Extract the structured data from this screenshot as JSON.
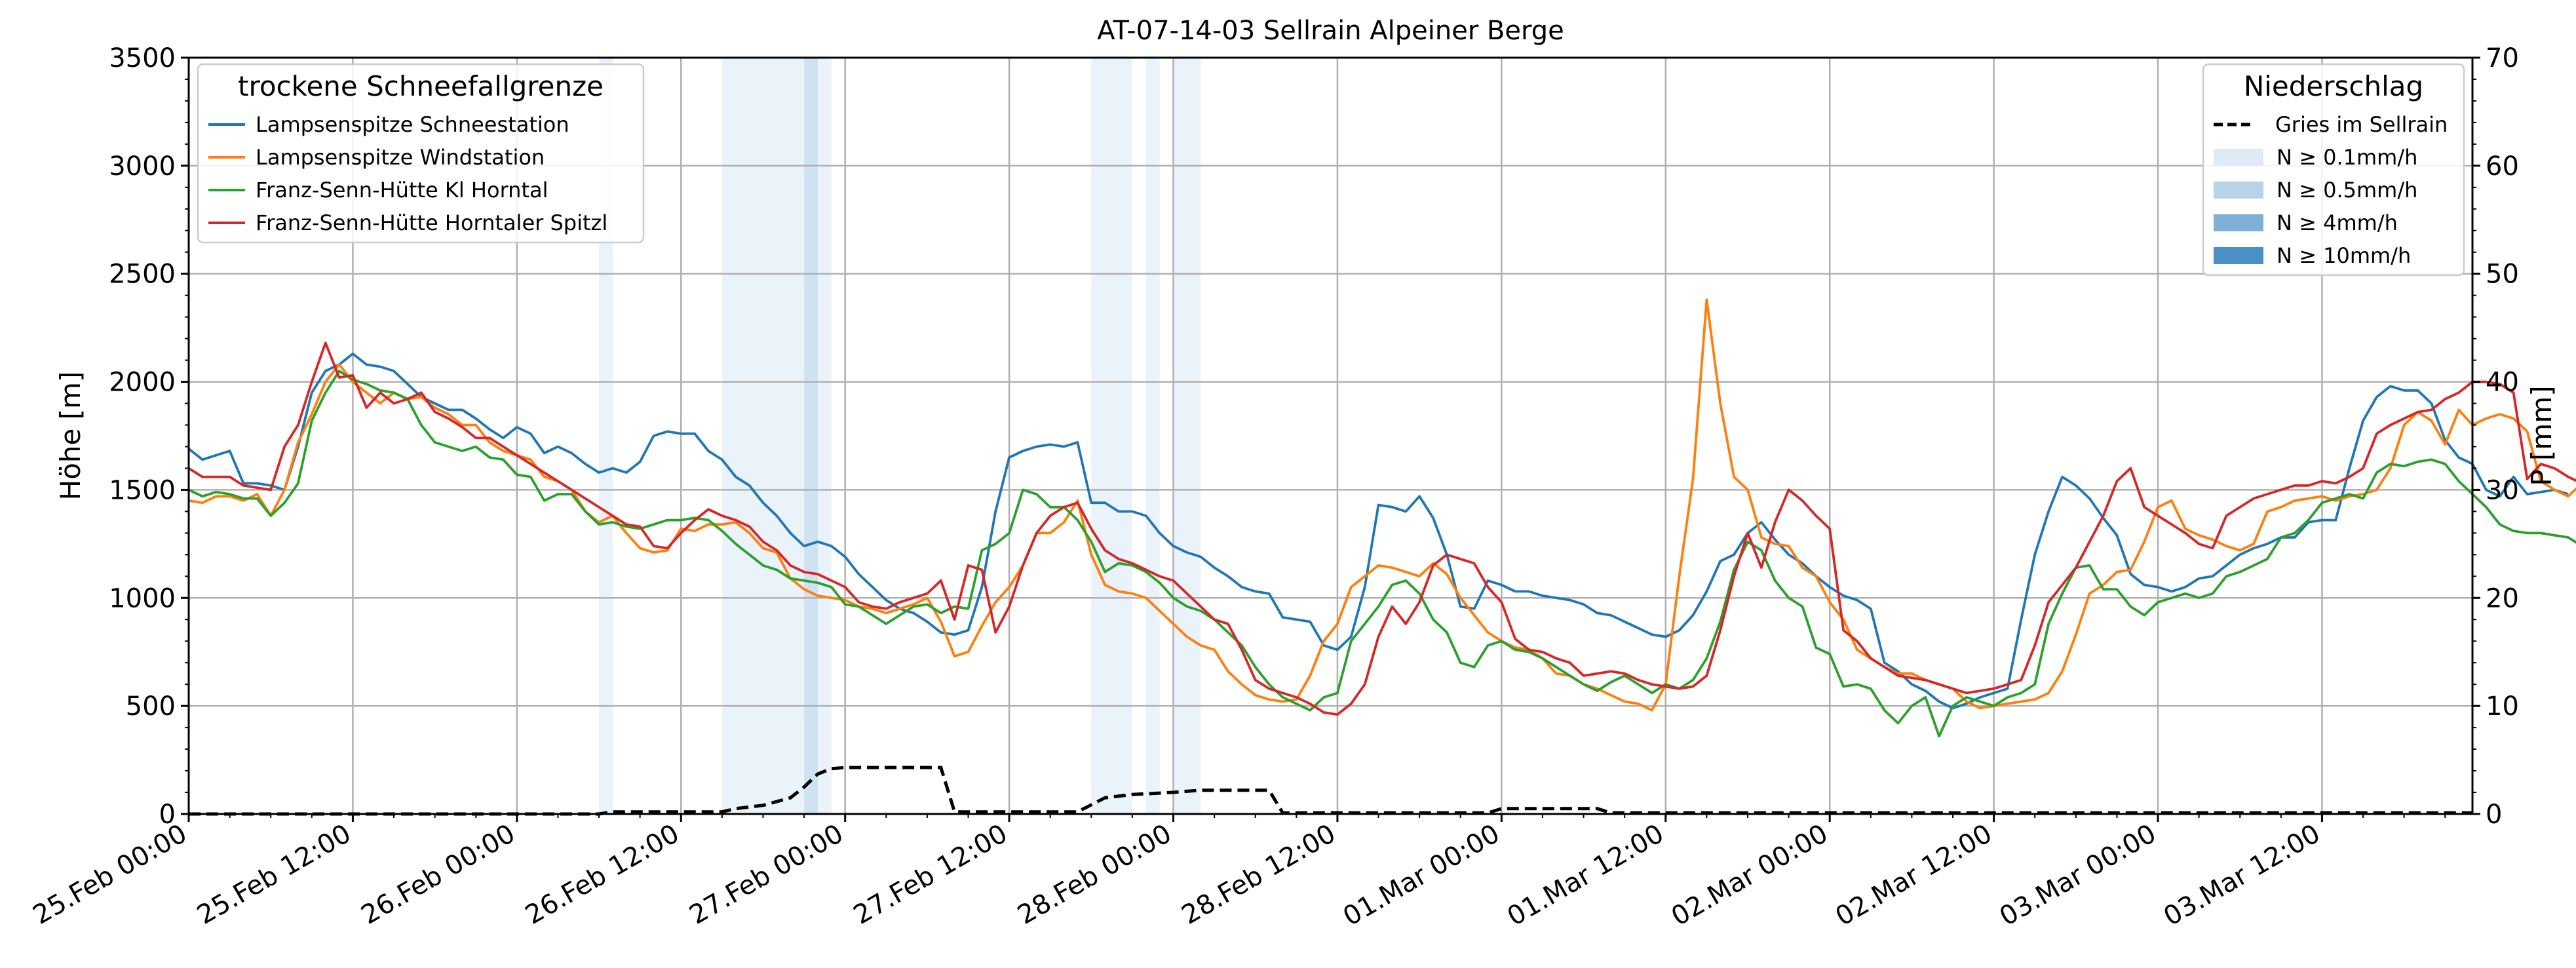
{
  "chart_data": {
    "type": "line",
    "title": "AT-07-14-03 Sellrain Alpeiner Berge",
    "ylabel_left": "Höhe [m]",
    "ylabel_right": "P [mm]",
    "ylim_left": [
      0,
      3500
    ],
    "ylim_right": [
      0,
      70
    ],
    "yticks_left": [
      "0",
      "500",
      "1000",
      "1500",
      "2000",
      "2500",
      "3000",
      "3500"
    ],
    "yticks_right": [
      "0",
      "10",
      "20",
      "30",
      "40",
      "50",
      "60",
      "70"
    ],
    "x_range_hours": [
      0,
      167
    ],
    "x_ticks": [
      "25.Feb 00:00",
      "25.Feb 12:00",
      "26.Feb 00:00",
      "26.Feb 12:00",
      "27.Feb 00:00",
      "27.Feb 12:00",
      "28.Feb 00:00",
      "28.Feb 12:00",
      "01.Mar 00:00",
      "01.Mar 12:00",
      "02.Mar 00:00",
      "02.Mar 12:00",
      "03.Mar 00:00",
      "03.Mar 12:00"
    ],
    "grid": true,
    "legend_left": {
      "title": "trockene Schneefallgrenze",
      "position": "top-left"
    },
    "legend_right": {
      "title": "Niederschlag",
      "position": "top-right",
      "entries": [
        {
          "label": "Gries im Sellrain",
          "style": "dashed",
          "color": "#000000"
        },
        {
          "label": "N ≥ 0.1mm/h",
          "color": "#deebf7"
        },
        {
          "label": "N ≥ 0.5mm/h",
          "color": "#b6d3ea"
        },
        {
          "label": "N ≥ 4mm/h",
          "color": "#7fb1d8"
        },
        {
          "label": "N ≥ 10mm/h",
          "color": "#4a90c6"
        }
      ]
    },
    "precip_bands": [
      {
        "x0": 30,
        "x1": 31,
        "level": "N ≥ 0.1mm/h"
      },
      {
        "x0": 39,
        "x1": 45,
        "level": "N ≥ 0.1mm/h"
      },
      {
        "x0": 45,
        "x1": 46,
        "level": "N ≥ 0.5mm/h"
      },
      {
        "x0": 46,
        "x1": 47,
        "level": "N ≥ 0.1mm/h"
      },
      {
        "x0": 66,
        "x1": 69,
        "level": "N ≥ 0.1mm/h"
      },
      {
        "x0": 70,
        "x1": 71,
        "level": "N ≥ 0.1mm/h"
      },
      {
        "x0": 72,
        "x1": 74,
        "level": "N ≥ 0.1mm/h"
      }
    ],
    "precip_cumulative": {
      "name": "Gries im Sellrain",
      "color": "#000000",
      "points": [
        [
          0,
          0
        ],
        [
          30,
          0
        ],
        [
          31,
          0.2
        ],
        [
          39,
          0.2
        ],
        [
          40,
          0.5
        ],
        [
          42,
          0.8
        ],
        [
          44,
          1.5
        ],
        [
          45,
          2.5
        ],
        [
          46,
          3.7
        ],
        [
          47,
          4.2
        ],
        [
          48,
          4.3
        ],
        [
          55,
          4.3
        ],
        [
          56,
          0.2
        ],
        [
          65,
          0.2
        ],
        [
          67,
          1.5
        ],
        [
          69,
          1.8
        ],
        [
          72,
          2
        ],
        [
          74,
          2.2
        ],
        [
          79,
          2.2
        ],
        [
          80,
          0.1
        ],
        [
          95,
          0.1
        ],
        [
          96,
          0.5
        ],
        [
          103,
          0.5
        ],
        [
          104,
          0.1
        ],
        [
          167,
          0.1
        ]
      ]
    },
    "series": [
      {
        "name": "Lampsenspitze Schneestation",
        "color": "#1f77b4",
        "values": [
          1690,
          1640,
          1660,
          1680,
          1530,
          1530,
          1520,
          1500,
          1700,
          1950,
          2050,
          2080,
          2130,
          2080,
          2070,
          2050,
          1990,
          1930,
          1900,
          1870,
          1870,
          1830,
          1780,
          1740,
          1790,
          1760,
          1670,
          1700,
          1670,
          1620,
          1580,
          1600,
          1580,
          1630,
          1750,
          1770,
          1760,
          1760,
          1680,
          1640,
          1560,
          1520,
          1440,
          1380,
          1300,
          1240,
          1260,
          1240,
          1190,
          1110,
          1050,
          990,
          950,
          930,
          890,
          840,
          830,
          850,
          1050,
          1400,
          1650,
          1680,
          1700,
          1710,
          1700,
          1720,
          1440,
          1440,
          1400,
          1400,
          1380,
          1300,
          1240,
          1210,
          1190,
          1140,
          1100,
          1050,
          1030,
          1020,
          910,
          900,
          890,
          780,
          760,
          820,
          1050,
          1430,
          1420,
          1400,
          1470,
          1370,
          1200,
          960,
          950,
          1080,
          1060,
          1030,
          1030,
          1010,
          1000,
          990,
          970,
          930,
          920,
          890,
          860,
          830,
          820,
          850,
          920,
          1030,
          1170,
          1200,
          1300,
          1350,
          1270,
          1200,
          1160,
          1100,
          1050,
          1010,
          990,
          950,
          700,
          660,
          600,
          570,
          520,
          490,
          510,
          540,
          560,
          580,
          900,
          1200,
          1400,
          1560,
          1520,
          1460,
          1370,
          1290,
          1110,
          1060,
          1050,
          1030,
          1050,
          1090,
          1100,
          1150,
          1200,
          1230,
          1250,
          1280,
          1280,
          1350,
          1360,
          1360,
          1600,
          1820,
          1930,
          1980,
          1960,
          1960,
          1900,
          1730,
          1650,
          1620,
          1500,
          1470,
          1560,
          1480,
          1490,
          1500,
          1480
        ]
      },
      {
        "name": "Lampsenspitze Windstation",
        "color": "#ff7f0e",
        "values": [
          1450,
          1440,
          1470,
          1470,
          1450,
          1480,
          1380,
          1500,
          1720,
          1850,
          2000,
          2080,
          2000,
          1950,
          1900,
          1950,
          1920,
          1930,
          1880,
          1850,
          1800,
          1800,
          1720,
          1680,
          1660,
          1640,
          1560,
          1540,
          1500,
          1400,
          1350,
          1380,
          1300,
          1230,
          1210,
          1220,
          1320,
          1310,
          1340,
          1340,
          1350,
          1300,
          1230,
          1210,
          1090,
          1040,
          1010,
          1000,
          990,
          960,
          950,
          930,
          950,
          970,
          1000,
          890,
          730,
          750,
          870,
          980,
          1050,
          1150,
          1300,
          1300,
          1350,
          1450,
          1200,
          1060,
          1030,
          1020,
          1000,
          940,
          880,
          820,
          780,
          760,
          660,
          600,
          550,
          530,
          520,
          530,
          640,
          800,
          880,
          1050,
          1100,
          1150,
          1140,
          1120,
          1100,
          1160,
          1110,
          1000,
          920,
          840,
          800,
          770,
          760,
          720,
          650,
          640,
          600,
          580,
          550,
          520,
          510,
          480,
          600,
          1100,
          1550,
          2380,
          1900,
          1560,
          1500,
          1280,
          1250,
          1240,
          1140,
          1100,
          980,
          900,
          760,
          720,
          680,
          650,
          650,
          620,
          600,
          580,
          520,
          490,
          500,
          510,
          520,
          530,
          560,
          660,
          830,
          1020,
          1060,
          1120,
          1130,
          1260,
          1420,
          1450,
          1320,
          1290,
          1270,
          1240,
          1220,
          1250,
          1400,
          1420,
          1450,
          1460,
          1470,
          1450,
          1470,
          1480,
          1500,
          1600,
          1800,
          1860,
          1820,
          1710,
          1870,
          1800,
          1830,
          1850,
          1830,
          1770,
          1540,
          1500,
          1470,
          1530,
          1500,
          1510,
          1500
        ]
      },
      {
        "name": "Franz-Senn-Hütte Kl Horntal",
        "color": "#2ca02c",
        "values": [
          1500,
          1470,
          1490,
          1480,
          1460,
          1460,
          1380,
          1440,
          1530,
          1820,
          1950,
          2050,
          2010,
          1990,
          1960,
          1950,
          1920,
          1800,
          1720,
          1700,
          1680,
          1700,
          1650,
          1640,
          1570,
          1560,
          1450,
          1480,
          1480,
          1400,
          1340,
          1350,
          1330,
          1320,
          1340,
          1360,
          1360,
          1370,
          1360,
          1310,
          1250,
          1200,
          1150,
          1130,
          1090,
          1080,
          1070,
          1050,
          970,
          960,
          920,
          880,
          920,
          960,
          970,
          930,
          960,
          950,
          1220,
          1250,
          1300,
          1500,
          1480,
          1420,
          1420,
          1360,
          1260,
          1120,
          1160,
          1150,
          1120,
          1070,
          1000,
          960,
          940,
          900,
          840,
          780,
          680,
          600,
          540,
          510,
          480,
          540,
          560,
          800,
          880,
          960,
          1060,
          1080,
          1020,
          900,
          840,
          700,
          680,
          780,
          800,
          760,
          750,
          720,
          680,
          640,
          600,
          570,
          610,
          640,
          600,
          560,
          600,
          580,
          620,
          720,
          890,
          1130,
          1260,
          1220,
          1080,
          1000,
          960,
          770,
          740,
          590,
          600,
          580,
          480,
          420,
          500,
          540,
          360,
          500,
          540,
          520,
          500,
          540,
          560,
          600,
          880,
          1020,
          1140,
          1150,
          1040,
          1040,
          960,
          920,
          980,
          1000,
          1020,
          1000,
          1020,
          1100,
          1120,
          1150,
          1180,
          1280,
          1300,
          1360,
          1440,
          1460,
          1480,
          1460,
          1580,
          1620,
          1610,
          1630,
          1640,
          1620,
          1540,
          1480,
          1420,
          1340,
          1310,
          1300,
          1300,
          1290,
          1280,
          1240,
          1270
        ]
      },
      {
        "name": "Franz-Senn-Hütte Horntaler Spitzl",
        "color": "#d62728",
        "values": [
          1600,
          1560,
          1560,
          1560,
          1520,
          1510,
          1500,
          1700,
          1800,
          2000,
          2180,
          2020,
          2030,
          1880,
          1950,
          1900,
          1920,
          1950,
          1860,
          1830,
          1790,
          1740,
          1740,
          1700,
          1660,
          1620,
          1580,
          1540,
          1500,
          1460,
          1420,
          1380,
          1340,
          1330,
          1240,
          1230,
          1300,
          1360,
          1410,
          1380,
          1360,
          1330,
          1260,
          1220,
          1150,
          1120,
          1110,
          1080,
          1050,
          980,
          960,
          950,
          980,
          1000,
          1020,
          1080,
          900,
          1150,
          1130,
          840,
          960,
          1150,
          1300,
          1380,
          1420,
          1440,
          1320,
          1220,
          1180,
          1160,
          1130,
          1100,
          1080,
          1020,
          960,
          900,
          880,
          760,
          620,
          580,
          560,
          540,
          510,
          470,
          460,
          510,
          600,
          820,
          960,
          880,
          980,
          1150,
          1200,
          1180,
          1160,
          1050,
          980,
          810,
          760,
          750,
          720,
          700,
          640,
          650,
          660,
          650,
          620,
          600,
          590,
          580,
          590,
          640,
          850,
          1100,
          1300,
          1140,
          1350,
          1500,
          1450,
          1380,
          1320,
          850,
          800,
          720,
          680,
          640,
          630,
          620,
          600,
          580,
          560,
          570,
          580,
          600,
          620,
          780,
          980,
          1060,
          1140,
          1260,
          1380,
          1540,
          1600,
          1420,
          1380,
          1340,
          1300,
          1250,
          1230,
          1380,
          1420,
          1460,
          1480,
          1500,
          1520,
          1520,
          1540,
          1530,
          1560,
          1600,
          1760,
          1800,
          1830,
          1860,
          1870,
          1920,
          1950,
          2000,
          2000,
          1990,
          1950,
          1550,
          1620,
          1600,
          1560,
          1530,
          1510
        ]
      }
    ]
  }
}
